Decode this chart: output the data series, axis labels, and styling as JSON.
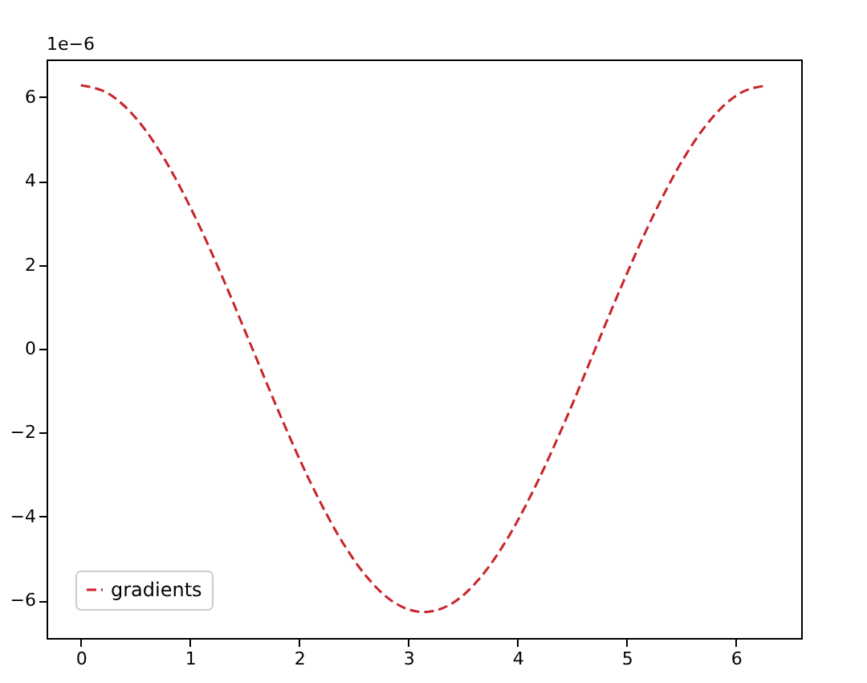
{
  "chart_data": {
    "type": "line",
    "x": [
      0,
      0.262,
      0.524,
      0.785,
      1.047,
      1.309,
      1.571,
      1.833,
      2.094,
      2.356,
      2.618,
      2.88,
      3.142,
      3.403,
      3.665,
      3.927,
      4.189,
      4.451,
      4.712,
      4.974,
      5.236,
      5.498,
      5.76,
      6.021,
      6.283
    ],
    "series": [
      {
        "name": "gradients",
        "color": "#c8242b",
        "line_style": "dashed",
        "values": [
          6.28,
          6.07,
          5.44,
          4.44,
          3.14,
          1.63,
          0,
          -1.63,
          -3.14,
          -4.44,
          -5.44,
          -6.07,
          -6.28,
          -6.07,
          -5.44,
          -4.44,
          -3.14,
          -1.63,
          0,
          1.63,
          3.14,
          4.44,
          5.44,
          6.07,
          6.28
        ]
      }
    ],
    "xlim": [
      -0.314,
      6.597
    ],
    "xticks": [
      0,
      1,
      2,
      3,
      4,
      5,
      6
    ],
    "ylim": [
      -6.9,
      6.9
    ],
    "yticks": [
      -6,
      -4,
      -2,
      0,
      2,
      4,
      6
    ],
    "annotations": [
      "1e−6"
    ],
    "legend": "bottom left",
    "grid": false,
    "marker": "none"
  }
}
